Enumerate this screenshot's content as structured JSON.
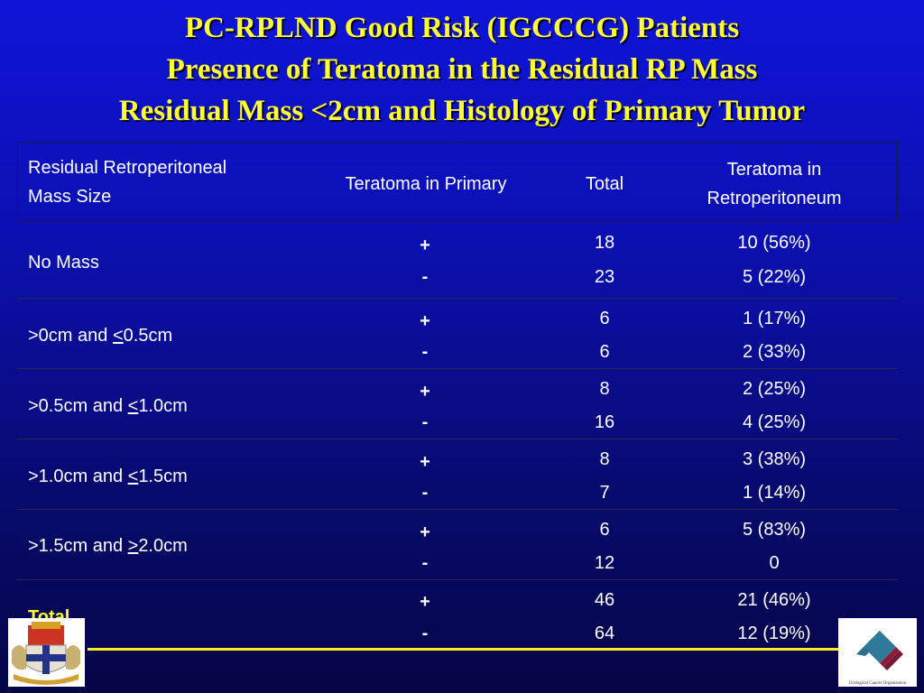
{
  "title": {
    "line1": "PC-RPLND Good Risk (IGCCCG) Patients",
    "line2": "Presence of Teratoma in the Residual RP Mass",
    "line3": "Residual Mass <2cm and Histology of Primary Tumor"
  },
  "table": {
    "headers": {
      "size_line1": "Residual Retroperitoneal",
      "size_line2": "Mass Size",
      "primary": "Teratoma in Primary",
      "total": "Total",
      "retro_line1": "Teratoma in",
      "retro_line2": "Retroperitoneum"
    },
    "rows": [
      {
        "size_a": "No Mass",
        "size_u": "",
        "size_b": "",
        "pos_sign": "+",
        "neg_sign": "-",
        "pos_total": "18",
        "neg_total": "23",
        "pos_retro": "10 (56%)",
        "neg_retro": "5 (22%)"
      },
      {
        "size_a": ">0cm and ",
        "size_u": "<",
        "size_b": "0.5cm",
        "pos_sign": "+",
        "neg_sign": "-",
        "pos_total": "6",
        "neg_total": "6",
        "pos_retro": "1 (17%)",
        "neg_retro": "2 (33%)"
      },
      {
        "size_a": ">0.5cm and ",
        "size_u": "<",
        "size_b": "1.0cm",
        "pos_sign": "+",
        "neg_sign": "-",
        "pos_total": "8",
        "neg_total": "16",
        "pos_retro": "2 (25%)",
        "neg_retro": "4 (25%)"
      },
      {
        "size_a": ">1.0cm and ",
        "size_u": "<",
        "size_b": "1.5cm",
        "pos_sign": "+",
        "neg_sign": "-",
        "pos_total": "8",
        "neg_total": "7",
        "pos_retro": "3 (38%)",
        "neg_retro": "1 (14%)"
      },
      {
        "size_a": ">1.5cm and ",
        "size_u": ">",
        "size_b": "2.0cm",
        "pos_sign": "+",
        "neg_sign": "-",
        "pos_total": "6",
        "neg_total": "12",
        "pos_retro": "5 (83%)",
        "neg_retro": "0"
      },
      {
        "size_a": "Total",
        "size_u": "",
        "size_b": "",
        "pos_sign": "+",
        "neg_sign": "-",
        "pos_total": "46",
        "neg_total": "64",
        "pos_retro": "21 (46%)",
        "neg_retro": "12 (19%)"
      }
    ]
  },
  "logos": {
    "right_caption": "Urological Cancer Organisation"
  },
  "colors": {
    "title": "#ffff33",
    "text": "#ffffff",
    "accent_line": "#ffee22"
  }
}
